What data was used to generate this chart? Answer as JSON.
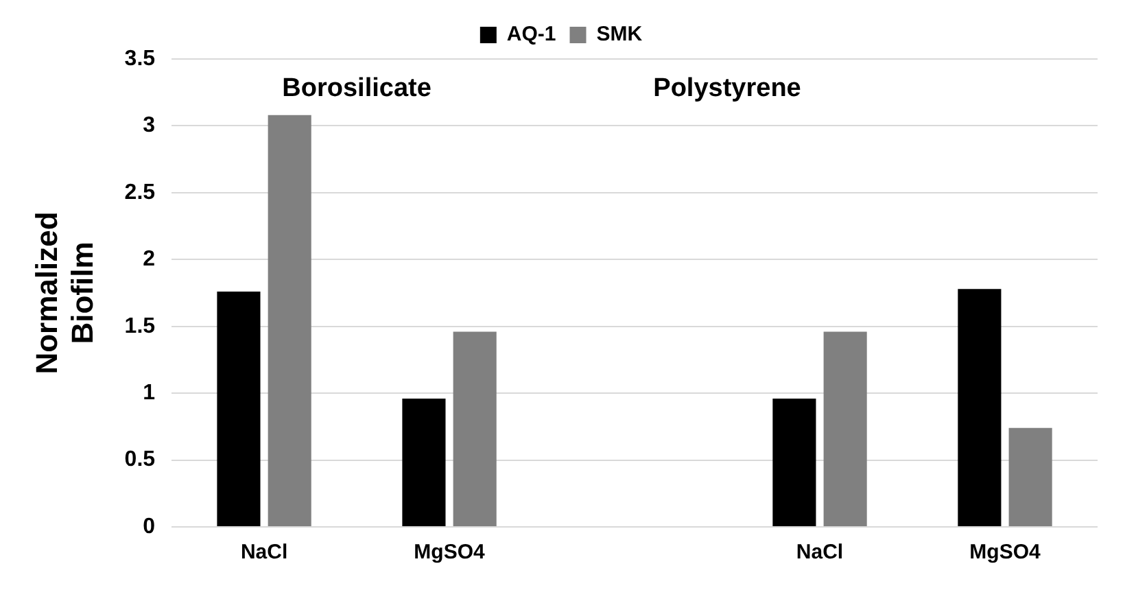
{
  "chart_data": {
    "type": "bar",
    "ylabel": "Normalized Biofilm",
    "categories": [
      "NaCl",
      "MgSO4",
      null,
      "NaCl",
      "MgSO4"
    ],
    "series": [
      {
        "name": "AQ-1",
        "color": "#000000",
        "values": [
          1.76,
          0.96,
          null,
          0.96,
          1.78
        ]
      },
      {
        "name": "SMK",
        "color": "#808080",
        "values": [
          3.08,
          1.46,
          null,
          1.46,
          0.74
        ]
      }
    ],
    "ylim": [
      0,
      3.5
    ],
    "yticks": [
      0,
      0.5,
      1,
      1.5,
      2,
      2.5,
      3,
      3.5
    ],
    "grid": "y",
    "legend": "top",
    "annotations": [
      "Borosilicate",
      "Polystyrene"
    ]
  }
}
